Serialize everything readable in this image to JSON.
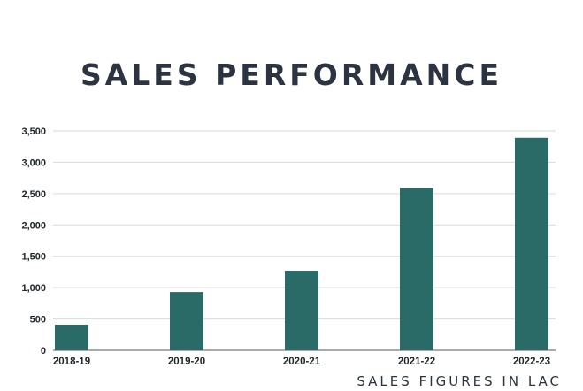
{
  "chart_data": {
    "type": "bar",
    "title": "SALES PERFORMANCE",
    "subtitle": "SALES FIGURES IN LAC",
    "categories": [
      "2018-19",
      "2019-20",
      "2020-21",
      "2021-22",
      "2022-23"
    ],
    "values": [
      410,
      930,
      1270,
      2590,
      3390
    ],
    "ylim": [
      0,
      3500
    ],
    "yticks": [
      0,
      500,
      1000,
      1500,
      2000,
      2500,
      3000,
      3500
    ],
    "ytick_labels": [
      "0",
      "500",
      "1,000",
      "1,500",
      "2,000",
      "2,500",
      "3,000",
      "3,500"
    ],
    "grid": true,
    "bar_color": "#2b6b67",
    "grid_color": "#d9d9d9",
    "axis_color": "#555555"
  }
}
